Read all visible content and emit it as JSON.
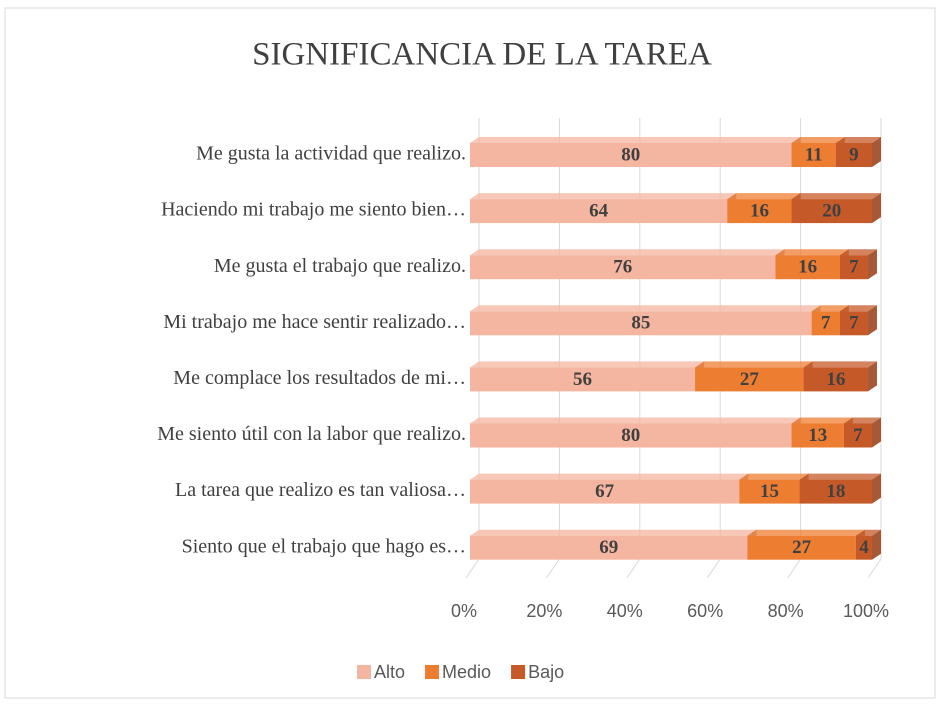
{
  "chart_data": {
    "type": "stacked_bar_horizontal",
    "title": "SIGNIFICANCIA DE LA TAREA",
    "categories": [
      "Me gusta la actividad que realizo.",
      "Haciendo mi trabajo me siento bien…",
      "Me gusta el trabajo que realizo.",
      "Mi trabajo me hace sentir realizado…",
      "Me complace los resultados de mi…",
      "Me siento útil con la labor que realizo.",
      "La tarea que realizo es tan valiosa…",
      "Siento que el trabajo que hago es…"
    ],
    "series": [
      {
        "name": "Alto",
        "color": "#f4b6a0",
        "values": [
          80,
          64,
          76,
          85,
          56,
          80,
          67,
          69
        ]
      },
      {
        "name": "Medio",
        "color": "#ed7d31",
        "values": [
          11,
          16,
          16,
          7,
          27,
          13,
          15,
          27
        ]
      },
      {
        "name": "Bajo",
        "color": "#c55a28",
        "values": [
          9,
          20,
          7,
          7,
          16,
          7,
          18,
          4
        ]
      }
    ],
    "xlim": [
      0,
      100
    ],
    "xticks": [
      {
        "value": 0,
        "label": "0%"
      },
      {
        "value": 20,
        "label": "20%"
      },
      {
        "value": 40,
        "label": "40%"
      },
      {
        "value": 60,
        "label": "60%"
      },
      {
        "value": 80,
        "label": "80%"
      },
      {
        "value": 100,
        "label": "100%"
      }
    ],
    "grid": true,
    "legend": "bottom"
  }
}
